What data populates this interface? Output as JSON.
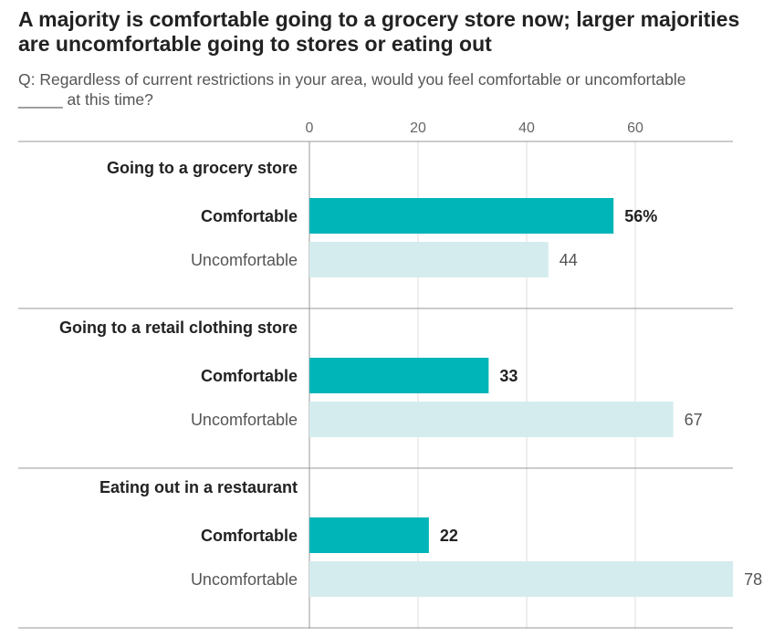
{
  "chart_data": {
    "type": "bar",
    "title": "A majority is comfortable going to a grocery store now; larger majorities are uncomfortable going to stores or eating out",
    "subtitle": "Q: Regardless of current restrictions in your area, would you feel comfortable or uncomfortable _____ at this time?",
    "xlim": [
      0,
      78
    ],
    "xticks": [
      0,
      20,
      40,
      60
    ],
    "grid": true,
    "colors": {
      "Comfortable": "#00b5b8",
      "Uncomfortable": "#d5ecee"
    },
    "groups": [
      {
        "label": "Going to a grocery store",
        "bars": [
          {
            "name": "Comfortable",
            "value": 56,
            "label": "56%"
          },
          {
            "name": "Uncomfortable",
            "value": 44,
            "label": "44"
          }
        ]
      },
      {
        "label": "Going to a retail clothing store",
        "bars": [
          {
            "name": "Comfortable",
            "value": 33,
            "label": "33"
          },
          {
            "name": "Uncomfortable",
            "value": 67,
            "label": "67"
          }
        ]
      },
      {
        "label": "Eating out in a restaurant",
        "bars": [
          {
            "name": "Comfortable",
            "value": 22,
            "label": "22"
          },
          {
            "name": "Uncomfortable",
            "value": 78,
            "label": "78"
          }
        ]
      }
    ]
  }
}
